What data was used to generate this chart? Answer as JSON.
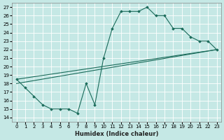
{
  "xlabel": "Humidex (Indice chaleur)",
  "ylabel": "",
  "xlim": [
    -0.5,
    23.5
  ],
  "ylim": [
    13.5,
    27.5
  ],
  "yticks": [
    14,
    15,
    16,
    17,
    18,
    19,
    20,
    21,
    22,
    23,
    24,
    25,
    26,
    27
  ],
  "xticks": [
    0,
    1,
    2,
    3,
    4,
    5,
    6,
    7,
    8,
    9,
    10,
    11,
    12,
    13,
    14,
    15,
    16,
    17,
    18,
    19,
    20,
    21,
    22,
    23
  ],
  "bg_color": "#c5e8e5",
  "line_color": "#1a6b5a",
  "grid_color": "#ffffff",
  "line1_x": [
    0,
    1,
    2,
    3,
    4,
    5,
    6,
    7,
    8,
    9,
    10,
    11,
    12,
    13,
    14,
    15,
    16,
    17,
    18,
    19,
    20,
    21,
    22,
    23
  ],
  "line1_y": [
    18.5,
    17.5,
    16.5,
    15.5,
    15.0,
    15.0,
    15.0,
    14.5,
    18.0,
    15.5,
    21.0,
    24.5,
    26.5,
    26.5,
    26.5,
    27.0,
    26.0,
    26.0,
    24.5,
    24.5,
    23.5,
    23.0,
    23.0,
    22.0
  ],
  "line2_x": [
    0,
    23
  ],
  "line2_y": [
    18.0,
    22.0
  ],
  "line3_x": [
    0,
    23
  ],
  "line3_y": [
    18.5,
    22.0
  ]
}
